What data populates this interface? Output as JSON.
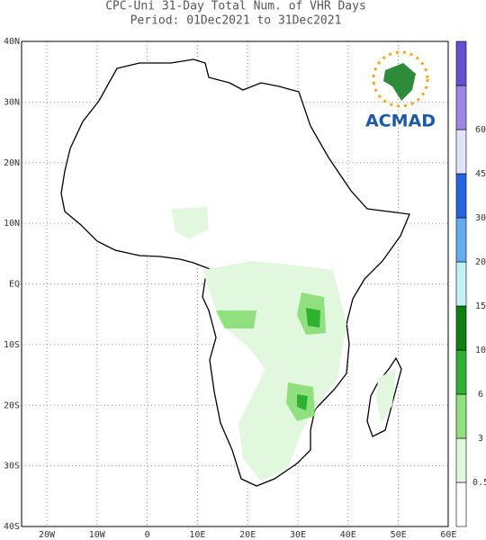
{
  "header": {
    "line1": "CPC-Uni 31-Day Total Num. of VHR Days",
    "line2": "Period: 01Dec2021 to 31Dec2021"
  },
  "lon_labels": [
    "20W",
    "10W",
    "0",
    "10E",
    "20E",
    "30E",
    "40E",
    "50E",
    "60E"
  ],
  "lat_labels": [
    "40N",
    "30N",
    "20N",
    "10N",
    "EQ",
    "10S",
    "20S",
    "30S",
    "40S"
  ],
  "colorbar": {
    "labels": [
      "0.5",
      "3",
      "6",
      "10",
      "15",
      "20",
      "30",
      "45",
      "60"
    ],
    "colors": [
      "#ffffff",
      "#e2f8de",
      "#90e080",
      "#30b030",
      "#108010",
      "#c4f2f4",
      "#64acf0",
      "#2464e0",
      "#e2e2f8",
      "#9a88e4",
      "#6450d0"
    ]
  },
  "logo": {
    "text": "ACMAD"
  }
}
